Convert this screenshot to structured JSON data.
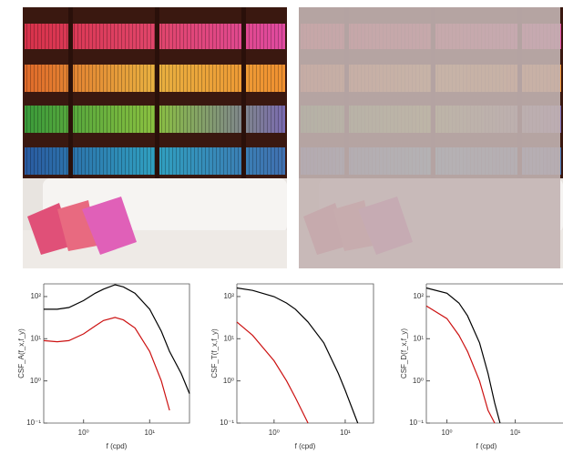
{
  "chart_data": [
    {
      "type": "line",
      "xlabel": "f (cpd)",
      "ylabel": "CSF_A(f_x,f_y)",
      "log_x": true,
      "log_y": true,
      "xlim": [
        0.25,
        40
      ],
      "ylim": [
        0.1,
        200
      ],
      "xticks": [
        {
          "value": 1,
          "label": "10⁰"
        },
        {
          "value": 10,
          "label": "10¹"
        }
      ],
      "yticks": [
        {
          "value": 0.1,
          "label": "10⁻¹"
        },
        {
          "value": 1,
          "label": "10⁰"
        },
        {
          "value": 10,
          "label": "10¹"
        },
        {
          "value": 100,
          "label": "10²"
        }
      ],
      "x": [
        0.25,
        0.4,
        0.6,
        1,
        1.5,
        2,
        3,
        4,
        6,
        10,
        15,
        20,
        30,
        40
      ],
      "series": [
        {
          "color": "#000000",
          "values": [
            50,
            50,
            55,
            80,
            120,
            150,
            190,
            170,
            120,
            50,
            15,
            5,
            1.5,
            0.5
          ]
        },
        {
          "color": "#cc1111",
          "values": [
            9,
            8.5,
            9,
            13,
            20,
            27,
            32,
            28,
            18,
            5,
            1,
            0.2,
            null,
            null
          ]
        }
      ]
    },
    {
      "type": "line",
      "xlabel": "f (cpd)",
      "ylabel": "CSF_T(f_x,f_y)",
      "log_x": true,
      "log_y": true,
      "xlim": [
        0.3,
        25
      ],
      "ylim": [
        0.1,
        200
      ],
      "xticks": [
        {
          "value": 1,
          "label": "10⁰"
        },
        {
          "value": 10,
          "label": "10¹"
        }
      ],
      "yticks": [
        {
          "value": 0.1,
          "label": "10⁻¹"
        },
        {
          "value": 1,
          "label": "10⁰"
        },
        {
          "value": 10,
          "label": "10¹"
        },
        {
          "value": 100,
          "label": "10²"
        }
      ],
      "x": [
        0.3,
        0.5,
        1,
        1.5,
        2,
        3,
        5,
        8,
        10,
        15
      ],
      "series": [
        {
          "color": "#000000",
          "values": [
            160,
            140,
            100,
            70,
            50,
            25,
            8,
            1.5,
            0.6,
            0.1
          ]
        },
        {
          "color": "#cc1111",
          "values": [
            25,
            12,
            3,
            1,
            0.4,
            0.1,
            null,
            null,
            null,
            null
          ]
        }
      ]
    },
    {
      "type": "line",
      "xlabel": "f (cpd)",
      "ylabel": "CSF_D(f_x,f_y)",
      "log_x": true,
      "log_y": true,
      "xlim": [
        0.5,
        50
      ],
      "ylim": [
        0.1,
        200
      ],
      "xticks": [
        {
          "value": 1,
          "label": "10⁰"
        },
        {
          "value": 10,
          "label": "10¹"
        }
      ],
      "yticks": [
        {
          "value": 0.1,
          "label": "10⁻¹"
        },
        {
          "value": 1,
          "label": "10⁰"
        },
        {
          "value": 10,
          "label": "10¹"
        },
        {
          "value": 100,
          "label": "10²"
        }
      ],
      "x": [
        0.5,
        1,
        1.5,
        2,
        3,
        4,
        5,
        6
      ],
      "series": [
        {
          "color": "#000000",
          "values": [
            160,
            120,
            70,
            35,
            8,
            1.5,
            0.3,
            0.1
          ]
        },
        {
          "color": "#cc1111",
          "values": [
            60,
            30,
            12,
            5,
            1,
            0.2,
            0.1,
            null
          ]
        }
      ]
    }
  ]
}
